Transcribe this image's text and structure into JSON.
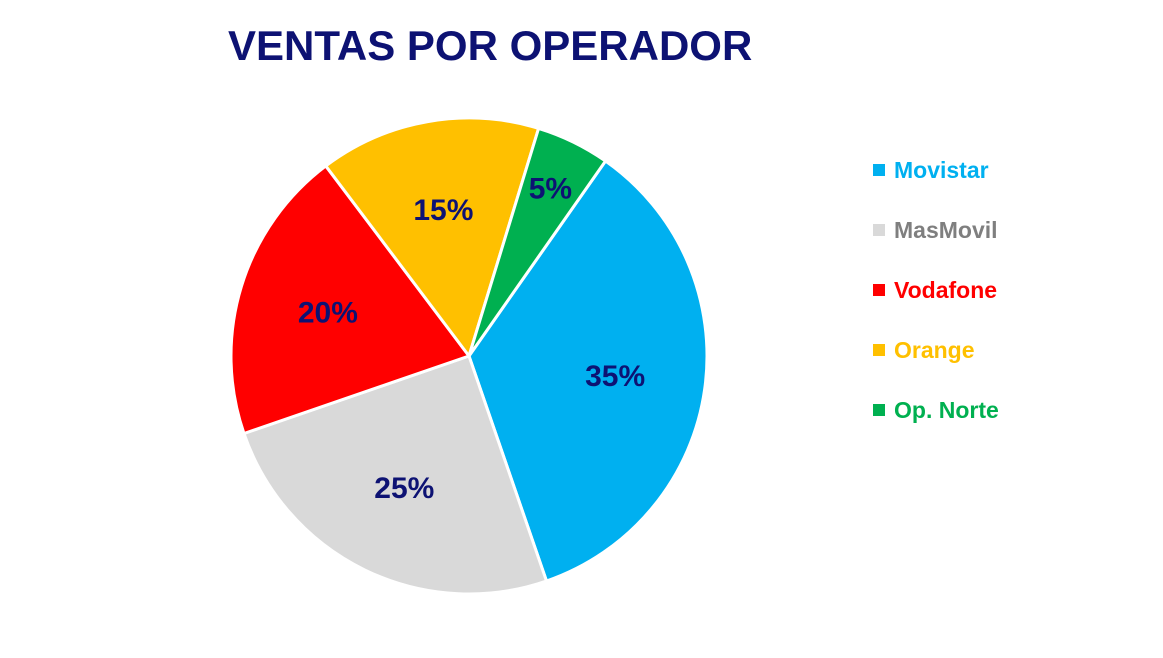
{
  "chart_data": {
    "type": "pie",
    "title": "VENTAS POR OPERADOR",
    "categories": [
      "Movistar",
      "MasMovil",
      "Vodafone",
      "Orange",
      "Op. Norte"
    ],
    "values": [
      35,
      25,
      20,
      15,
      5
    ],
    "data_labels": [
      "35%",
      "25%",
      "20%",
      "15%",
      "5%"
    ],
    "colors": [
      "#00b0f0",
      "#d9d9d9",
      "#ff0000",
      "#ffc000",
      "#00b050"
    ],
    "legend_text_colors": [
      "#00b0f0",
      "#7f7f7f",
      "#ff0000",
      "#ffc000",
      "#00b050"
    ],
    "legend_position": "right",
    "label_color": "#0d1273"
  }
}
